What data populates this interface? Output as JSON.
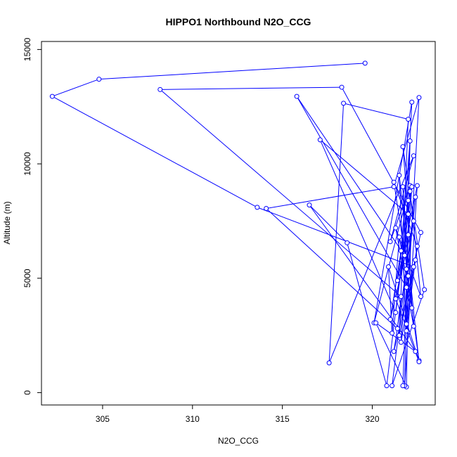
{
  "chart_data": {
    "type": "scatter",
    "title": "HIPPO1 Northbound N2O_CCG",
    "xlabel": "N2O_CCG",
    "ylabel": "Altitude (m)",
    "xlim": [
      301.6,
      323.5
    ],
    "ylim": [
      -540,
      15350
    ],
    "xticks": [
      305,
      310,
      315,
      320
    ],
    "yticks": [
      0,
      5000,
      10000,
      15000
    ],
    "grid": false,
    "legend": "none",
    "series": [
      {
        "color": "#0000ff",
        "connected": true,
        "x": [
          319.6,
          304.8,
          302.2,
          313.6,
          322.3,
          321.9,
          322.6,
          321.2,
          314.1,
          321.4,
          321.6,
          308.2,
          318.3,
          322.7,
          321.5,
          322.0,
          318.4,
          317.6,
          322.3,
          321.0,
          322.1,
          320.1,
          322.2,
          321.8,
          315.8,
          321.9,
          322.4,
          321.1,
          322.9,
          321.7,
          322.0,
          317.1,
          321.3,
          322.2,
          321.6,
          322.5,
          321.2,
          322.0,
          321.9,
          320.2,
          322.4,
          316.5,
          318.6,
          320.8,
          322.1,
          322.7,
          321.3,
          322.3,
          321.7,
          321.9,
          322.6,
          320.9,
          321.1,
          321.5,
          322.2,
          322.0,
          321.4,
          322.5,
          321.8,
          322.1,
          321.6,
          321.0,
          322.3,
          321.2,
          322.4,
          321.9,
          321.5,
          322.6,
          321.3,
          322.0,
          321.7
        ],
        "y": [
          14400,
          13700,
          12950,
          8100,
          5500,
          3000,
          12900,
          9000,
          8050,
          2800,
          4200,
          13250,
          13350,
          7000,
          2500,
          11950,
          12650,
          1300,
          10350,
          6600,
          9050,
          3050,
          12700,
          6000,
          12950,
          4600,
          8550,
          300,
          4500,
          10750,
          7800,
          11050,
          3500,
          9000,
          2200,
          6400,
          9200,
          5100,
          250,
          3050,
          1800,
          8200,
          6550,
          300,
          8800,
          4200,
          7200,
          2900,
          9000,
          5400,
          1400,
          5500,
          2600,
          6800,
          3700,
          8400,
          4900,
          9050,
          300,
          11000,
          6200,
          3200,
          7500,
          1800,
          5800,
          2700,
          9500,
          1350,
          4100,
          6900,
          300
        ]
      }
    ]
  }
}
